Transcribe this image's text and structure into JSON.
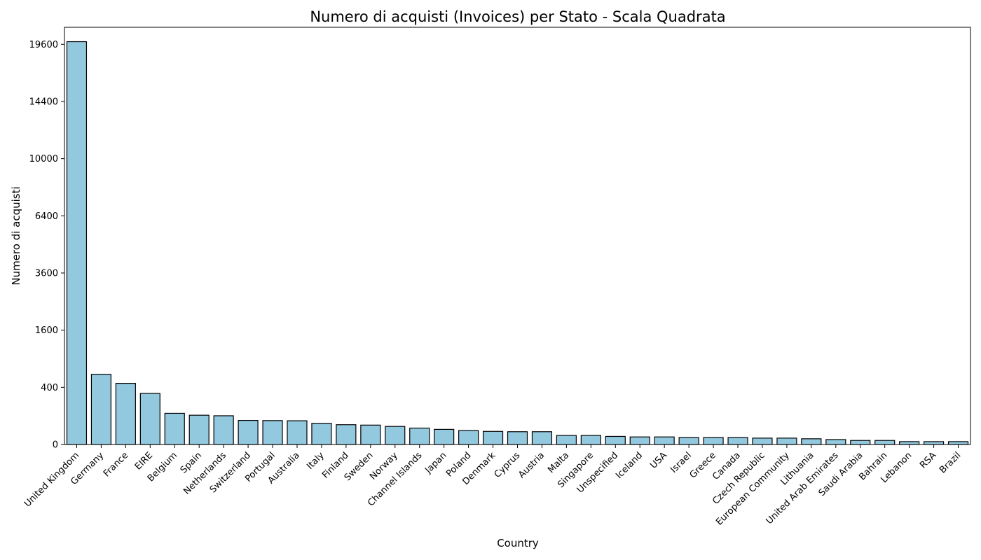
{
  "chart_data": {
    "type": "bar",
    "title": "Numero di acquisti (Invoices) per Stato - Scala Quadrata",
    "xlabel": "Country",
    "ylabel": "Numero di acquisti",
    "y_scale": "square root",
    "ylim": [
      0,
      21300
    ],
    "yticks": [
      0,
      400,
      1600,
      3600,
      6400,
      10000,
      14400,
      19600
    ],
    "grid": false,
    "legend": "none",
    "bar_color": "#93c9df",
    "edge_color": "#000000",
    "categories": [
      "United Kingdom",
      "Germany",
      "France",
      "EIRE",
      "Belgium",
      "Spain",
      "Netherlands",
      "Switzerland",
      "Portugal",
      "Australia",
      "Italy",
      "Finland",
      "Sweden",
      "Norway",
      "Channel Islands",
      "Japan",
      "Poland",
      "Denmark",
      "Cyprus",
      "Austria",
      "Malta",
      "Singapore",
      "Unspecified",
      "Iceland",
      "USA",
      "Israel",
      "Greece",
      "Canada",
      "Czech Republic",
      "European Community",
      "Lithuania",
      "United Arab Emirates",
      "Saudi Arabia",
      "Bahrain",
      "Lebanon",
      "RSA",
      "Brazil"
    ],
    "values": [
      19857,
      603,
      458,
      319,
      119,
      105,
      101,
      71,
      70,
      69,
      55,
      48,
      46,
      40,
      33,
      28,
      24,
      21,
      20,
      20,
      10,
      10,
      8,
      7,
      7,
      6,
      6,
      6,
      5,
      5,
      4,
      3,
      2,
      2,
      1,
      1,
      1
    ]
  }
}
